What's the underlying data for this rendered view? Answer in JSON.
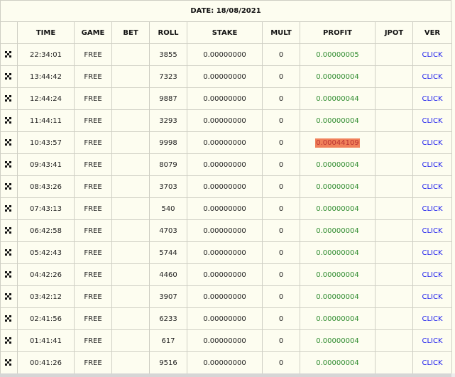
{
  "header": {
    "date_label": "DATE: 18/08/2021"
  },
  "columns": {
    "icon": "",
    "time": "TIME",
    "game": "GAME",
    "bet": "BET",
    "roll": "ROLL",
    "stake": "STAKE",
    "mult": "MULT",
    "profit": "PROFIT",
    "jpot": "JPOT",
    "ver": "VER"
  },
  "rows": [
    {
      "time": "22:34:01",
      "game": "FREE",
      "bet": "",
      "roll": "3855",
      "stake": "0.00000000",
      "mult": "0",
      "profit": "0.00000005",
      "jpot": "",
      "ver": "CLICK",
      "highlight": false
    },
    {
      "time": "13:44:42",
      "game": "FREE",
      "bet": "",
      "roll": "7323",
      "stake": "0.00000000",
      "mult": "0",
      "profit": "0.00000004",
      "jpot": "",
      "ver": "CLICK",
      "highlight": false
    },
    {
      "time": "12:44:24",
      "game": "FREE",
      "bet": "",
      "roll": "9887",
      "stake": "0.00000000",
      "mult": "0",
      "profit": "0.00000044",
      "jpot": "",
      "ver": "CLICK",
      "highlight": false
    },
    {
      "time": "11:44:11",
      "game": "FREE",
      "bet": "",
      "roll": "3293",
      "stake": "0.00000000",
      "mult": "0",
      "profit": "0.00000004",
      "jpot": "",
      "ver": "CLICK",
      "highlight": false
    },
    {
      "time": "10:43:57",
      "game": "FREE",
      "bet": "",
      "roll": "9998",
      "stake": "0.00000000",
      "mult": "0",
      "profit": "0.00044109",
      "jpot": "",
      "ver": "CLICK",
      "highlight": true
    },
    {
      "time": "09:43:41",
      "game": "FREE",
      "bet": "",
      "roll": "8079",
      "stake": "0.00000000",
      "mult": "0",
      "profit": "0.00000004",
      "jpot": "",
      "ver": "CLICK",
      "highlight": false
    },
    {
      "time": "08:43:26",
      "game": "FREE",
      "bet": "",
      "roll": "3703",
      "stake": "0.00000000",
      "mult": "0",
      "profit": "0.00000004",
      "jpot": "",
      "ver": "CLICK",
      "highlight": false
    },
    {
      "time": "07:43:13",
      "game": "FREE",
      "bet": "",
      "roll": "540",
      "stake": "0.00000000",
      "mult": "0",
      "profit": "0.00000004",
      "jpot": "",
      "ver": "CLICK",
      "highlight": false
    },
    {
      "time": "06:42:58",
      "game": "FREE",
      "bet": "",
      "roll": "4703",
      "stake": "0.00000000",
      "mult": "0",
      "profit": "0.00000004",
      "jpot": "",
      "ver": "CLICK",
      "highlight": false
    },
    {
      "time": "05:42:43",
      "game": "FREE",
      "bet": "",
      "roll": "5744",
      "stake": "0.00000000",
      "mult": "0",
      "profit": "0.00000004",
      "jpot": "",
      "ver": "CLICK",
      "highlight": false
    },
    {
      "time": "04:42:26",
      "game": "FREE",
      "bet": "",
      "roll": "4460",
      "stake": "0.00000000",
      "mult": "0",
      "profit": "0.00000004",
      "jpot": "",
      "ver": "CLICK",
      "highlight": false
    },
    {
      "time": "03:42:12",
      "game": "FREE",
      "bet": "",
      "roll": "3907",
      "stake": "0.00000000",
      "mult": "0",
      "profit": "0.00000004",
      "jpot": "",
      "ver": "CLICK",
      "highlight": false
    },
    {
      "time": "02:41:56",
      "game": "FREE",
      "bet": "",
      "roll": "6233",
      "stake": "0.00000000",
      "mult": "0",
      "profit": "0.00000004",
      "jpot": "",
      "ver": "CLICK",
      "highlight": false
    },
    {
      "time": "01:41:41",
      "game": "FREE",
      "bet": "",
      "roll": "617",
      "stake": "0.00000000",
      "mult": "0",
      "profit": "0.00000004",
      "jpot": "",
      "ver": "CLICK",
      "highlight": false
    },
    {
      "time": "00:41:26",
      "game": "FREE",
      "bet": "",
      "roll": "9516",
      "stake": "0.00000000",
      "mult": "0",
      "profit": "0.00000004",
      "jpot": "",
      "ver": "CLICK",
      "highlight": false
    }
  ],
  "colors": {
    "background": "#fdfdf0",
    "profit": "#2e8b2e",
    "highlight_bg": "#f0805a",
    "link": "#1a1aee"
  },
  "icons": {
    "row_icon": "expand-arrows-icon"
  }
}
